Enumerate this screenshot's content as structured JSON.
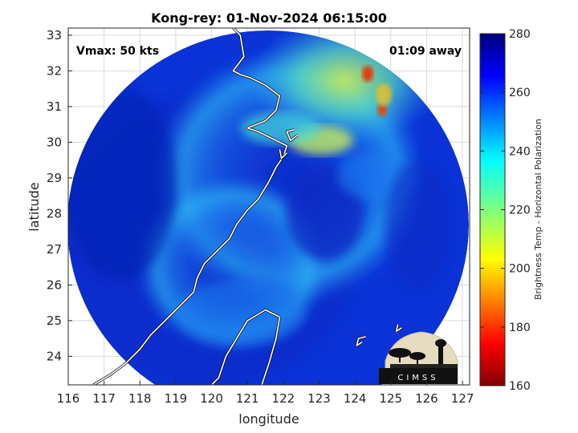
{
  "chart_data": {
    "type": "heatmap",
    "title": "Kong-rey: 01-Nov-2024 06:15:00",
    "xlabel": "longitude",
    "ylabel": "latitude",
    "xlim": [
      116,
      127.2
    ],
    "ylim": [
      23.2,
      33.2
    ],
    "x_ticks": [
      116,
      117,
      118,
      119,
      120,
      121,
      122,
      123,
      124,
      125,
      126,
      127
    ],
    "y_ticks": [
      24,
      25,
      26,
      27,
      28,
      29,
      30,
      31,
      32,
      33
    ],
    "grid": true,
    "annotations": {
      "vmax": "Vmax: 50 kts",
      "time_offset": "01:09 away"
    },
    "colorbar": {
      "label": "Brightness Temp - Horizontal Polarization",
      "range": [
        160,
        280
      ],
      "ticks": [
        160,
        180,
        200,
        220,
        240,
        260,
        280
      ],
      "colormap": "jet"
    },
    "storm_center": {
      "lon": 122.4,
      "lat": 28.4
    },
    "swath_center": {
      "lon": 121.4,
      "lat": 28.2
    },
    "coastlines": [
      [
        [
          116.7,
          23.2
        ],
        [
          117.2,
          23.5
        ],
        [
          117.6,
          23.8
        ],
        [
          118.0,
          24.2
        ],
        [
          118.3,
          24.6
        ],
        [
          118.6,
          24.9
        ],
        [
          118.9,
          25.2
        ],
        [
          119.2,
          25.5
        ],
        [
          119.5,
          25.8
        ],
        [
          119.6,
          26.2
        ],
        [
          119.8,
          26.6
        ],
        [
          120.2,
          27.0
        ],
        [
          120.5,
          27.3
        ],
        [
          120.7,
          27.7
        ],
        [
          121.0,
          28.1
        ],
        [
          121.3,
          28.4
        ],
        [
          121.6,
          28.9
        ],
        [
          121.8,
          29.3
        ],
        [
          122.0,
          29.6
        ],
        [
          122.1,
          29.9
        ],
        [
          121.7,
          30.1
        ],
        [
          121.3,
          30.3
        ],
        [
          121.0,
          30.4
        ],
        [
          121.5,
          30.6
        ],
        [
          121.8,
          30.9
        ],
        [
          121.9,
          31.3
        ],
        [
          121.5,
          31.6
        ],
        [
          121.1,
          31.8
        ],
        [
          120.8,
          31.9
        ],
        [
          120.6,
          32.0
        ],
        [
          120.9,
          32.4
        ],
        [
          120.8,
          33.0
        ],
        [
          120.6,
          33.2
        ]
      ],
      [
        [
          121.9,
          25.1
        ],
        [
          121.5,
          25.3
        ],
        [
          121.0,
          25.0
        ],
        [
          120.7,
          24.5
        ],
        [
          120.4,
          24.0
        ],
        [
          120.2,
          23.4
        ],
        [
          120.0,
          23.2
        ]
      ],
      [
        [
          121.9,
          25.1
        ],
        [
          121.8,
          24.5
        ],
        [
          121.6,
          23.8
        ],
        [
          121.4,
          23.2
        ]
      ],
      [
        [
          122.4,
          30.2
        ],
        [
          122.2,
          30.05
        ],
        [
          122.1,
          30.3
        ],
        [
          122.3,
          30.35
        ]
      ],
      [
        [
          122.1,
          29.7
        ],
        [
          121.95,
          29.55
        ],
        [
          121.9,
          29.8
        ]
      ],
      [
        [
          124.2,
          24.4
        ],
        [
          124.05,
          24.3
        ],
        [
          124.1,
          24.5
        ],
        [
          124.3,
          24.55
        ]
      ],
      [
        [
          125.3,
          24.8
        ],
        [
          125.15,
          24.7
        ],
        [
          125.2,
          24.9
        ]
      ]
    ]
  },
  "logo": {
    "text": "CIMSS"
  }
}
